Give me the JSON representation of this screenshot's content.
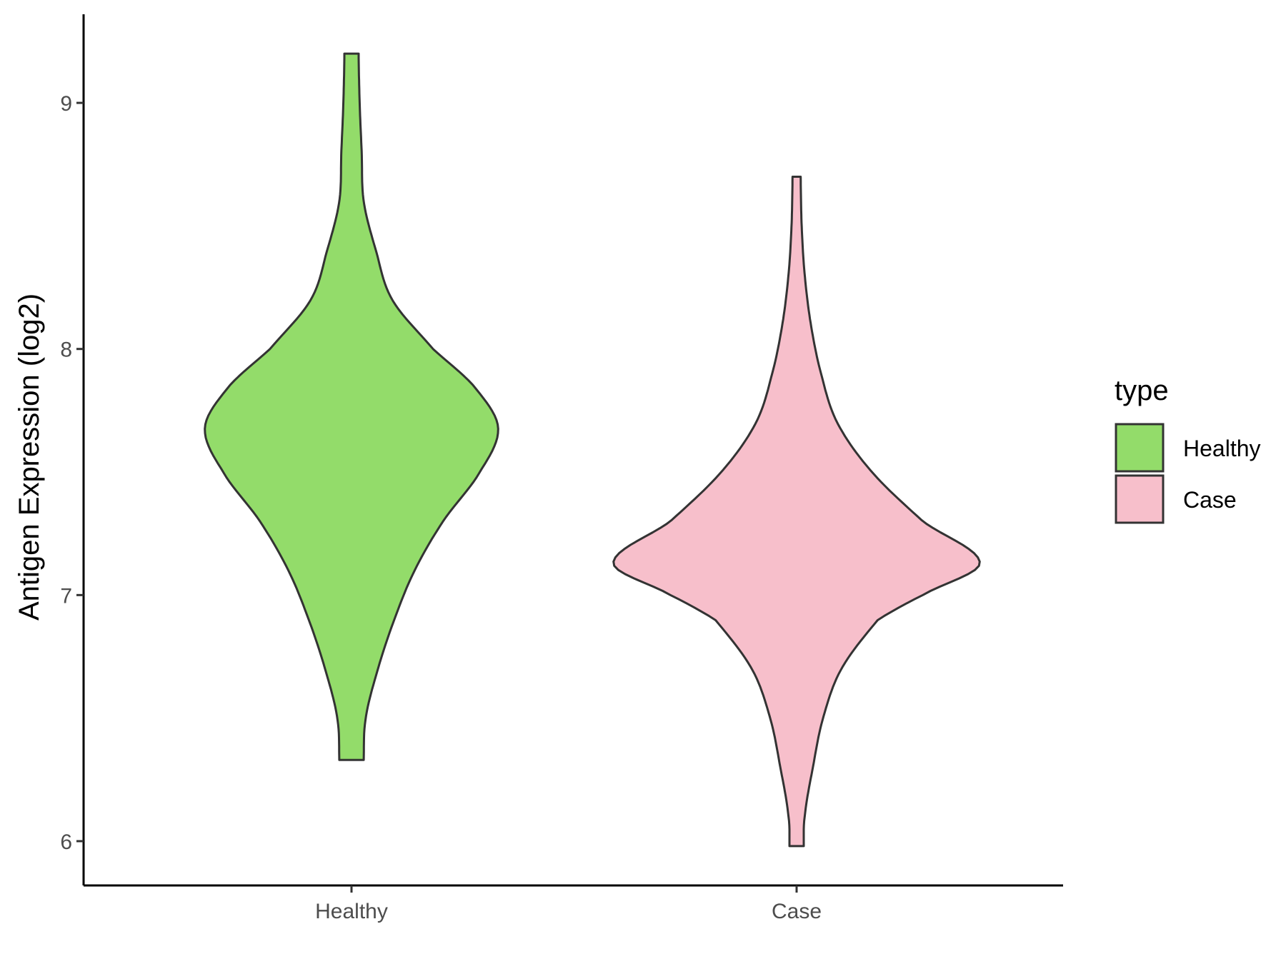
{
  "chart_data": {
    "type": "violin",
    "title": "",
    "xlabel": "",
    "ylabel": "Antigen Expression (log2)",
    "ylim": [
      5.82,
      9.36
    ],
    "yticks": [
      6,
      7,
      8,
      9
    ],
    "grid": false,
    "categories": [
      "Healthy",
      "Case"
    ],
    "legend": {
      "title": "type",
      "placement": "right",
      "entries": [
        {
          "label": "Healthy",
          "color": "#93DC6A"
        },
        {
          "label": "Case",
          "color": "#F7BFCB"
        }
      ]
    },
    "series": [
      {
        "name": "Healthy",
        "color": "#93DC6A",
        "min": 6.33,
        "max": 9.2,
        "profile": [
          [
            6.33,
            0.06
          ],
          [
            6.5,
            0.07
          ],
          [
            6.7,
            0.13
          ],
          [
            6.9,
            0.21
          ],
          [
            7.1,
            0.31
          ],
          [
            7.3,
            0.45
          ],
          [
            7.5,
            0.63
          ],
          [
            7.68,
            0.72
          ],
          [
            7.85,
            0.6
          ],
          [
            8.0,
            0.4
          ],
          [
            8.2,
            0.2
          ],
          [
            8.4,
            0.12
          ],
          [
            8.6,
            0.06
          ],
          [
            8.8,
            0.05
          ],
          [
            9.0,
            0.04
          ],
          [
            9.2,
            0.035
          ]
        ]
      },
      {
        "name": "Case",
        "color": "#F7BFCB",
        "min": 5.98,
        "max": 8.7,
        "profile": [
          [
            5.98,
            0.035
          ],
          [
            6.1,
            0.04
          ],
          [
            6.3,
            0.08
          ],
          [
            6.5,
            0.13
          ],
          [
            6.7,
            0.22
          ],
          [
            6.9,
            0.4
          ],
          [
            7.0,
            0.62
          ],
          [
            7.13,
            0.9
          ],
          [
            7.3,
            0.62
          ],
          [
            7.5,
            0.37
          ],
          [
            7.7,
            0.2
          ],
          [
            7.9,
            0.12
          ],
          [
            8.1,
            0.07
          ],
          [
            8.3,
            0.04
          ],
          [
            8.5,
            0.025
          ],
          [
            8.7,
            0.02
          ]
        ]
      }
    ]
  }
}
